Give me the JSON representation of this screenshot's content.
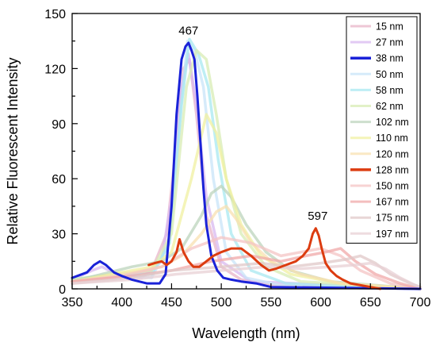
{
  "chart_data": {
    "type": "line",
    "xlabel": "Wavelength (nm)",
    "ylabel": "Relative Fluorescent Intensity",
    "xlim": [
      350,
      700
    ],
    "ylim": [
      0,
      150
    ],
    "xticks": [
      350,
      400,
      450,
      500,
      550,
      600,
      650,
      700
    ],
    "yticks": [
      0,
      30,
      60,
      90,
      120,
      150
    ],
    "grid": false,
    "legend_position": "top-right",
    "annotations": [
      {
        "text": "467",
        "x": 467,
        "y": 136
      },
      {
        "text": "597",
        "x": 597,
        "y": 35
      }
    ],
    "series": [
      {
        "name": "15 nm",
        "color": "#e8b4c8",
        "highlight": false,
        "x": [
          350,
          400,
          430,
          445,
          455,
          462,
          468,
          475,
          485,
          500,
          520,
          550,
          700
        ],
        "y": [
          5,
          7,
          10,
          30,
          80,
          120,
          125,
          95,
          40,
          12,
          5,
          2,
          0
        ]
      },
      {
        "name": "27 nm",
        "color": "#d8b8f0",
        "highlight": false,
        "x": [
          350,
          370,
          380,
          395,
          420,
          440,
          450,
          460,
          467,
          475,
          485,
          500,
          530,
          700
        ],
        "y": [
          5,
          10,
          12,
          8,
          6,
          15,
          50,
          110,
          128,
          100,
          50,
          15,
          4,
          0
        ]
      },
      {
        "name": "38 nm",
        "color": "#1a22d8",
        "highlight": true,
        "x": [
          350,
          365,
          372,
          378,
          384,
          392,
          400,
          410,
          425,
          438,
          444,
          450,
          455,
          460,
          464,
          467,
          470,
          473,
          476,
          479,
          482,
          485,
          490,
          496,
          502,
          510,
          520,
          535,
          550,
          700
        ],
        "y": [
          6,
          9,
          13,
          15,
          13,
          9,
          7,
          5,
          3,
          3,
          8,
          45,
          95,
          125,
          132,
          134,
          130,
          125,
          105,
          80,
          55,
          35,
          18,
          10,
          6,
          5,
          4,
          3,
          1,
          0
        ]
      },
      {
        "name": "50 nm",
        "color": "#c8e4f8",
        "highlight": false,
        "x": [
          350,
          390,
          430,
          448,
          458,
          466,
          473,
          482,
          492,
          505,
          525,
          560,
          700
        ],
        "y": [
          5,
          8,
          6,
          25,
          90,
          135,
          130,
          110,
          60,
          20,
          6,
          2,
          0
        ]
      },
      {
        "name": "58 nm",
        "color": "#a8e8f0",
        "highlight": false,
        "x": [
          350,
          390,
          430,
          448,
          460,
          468,
          477,
          487,
          497,
          510,
          530,
          565,
          700
        ],
        "y": [
          5,
          8,
          8,
          25,
          100,
          136,
          128,
          110,
          70,
          30,
          10,
          3,
          0
        ]
      },
      {
        "name": "62 nm",
        "color": "#d8ecb4",
        "highlight": false,
        "x": [
          350,
          390,
          430,
          450,
          465,
          475,
          485,
          495,
          505,
          520,
          545,
          580,
          700
        ],
        "y": [
          5,
          8,
          10,
          30,
          110,
          130,
          125,
          95,
          60,
          30,
          12,
          4,
          0
        ]
      },
      {
        "name": "102 nm",
        "color": "#bcd4bc",
        "highlight": false,
        "x": [
          350,
          380,
          410,
          440,
          460,
          480,
          490,
          500,
          510,
          525,
          545,
          570,
          610,
          700
        ],
        "y": [
          4,
          8,
          12,
          15,
          22,
          40,
          52,
          56,
          50,
          35,
          20,
          10,
          4,
          0
        ]
      },
      {
        "name": "110 nm",
        "color": "#f0f0a0",
        "highlight": false,
        "x": [
          350,
          390,
          430,
          450,
          470,
          485,
          495,
          505,
          520,
          540,
          570,
          620,
          700
        ],
        "y": [
          4,
          8,
          12,
          20,
          60,
          95,
          85,
          60,
          35,
          18,
          8,
          3,
          0
        ]
      },
      {
        "name": "120 nm",
        "color": "#f8e0b0",
        "highlight": false,
        "x": [
          350,
          400,
          440,
          460,
          480,
          495,
          505,
          515,
          530,
          550,
          580,
          620,
          700
        ],
        "y": [
          4,
          8,
          12,
          18,
          30,
          42,
          45,
          38,
          25,
          15,
          8,
          3,
          0
        ]
      },
      {
        "name": "128 nm",
        "color": "#dc3c10",
        "highlight": true,
        "x": [
          427,
          433,
          440,
          445,
          450,
          455,
          458,
          462,
          467,
          472,
          478,
          485,
          492,
          500,
          510,
          520,
          530,
          540,
          548,
          555,
          565,
          575,
          582,
          588,
          592,
          595,
          598,
          601,
          605,
          610,
          616,
          622,
          630,
          640,
          650,
          660
        ],
        "y": [
          13,
          14,
          15,
          13,
          15,
          20,
          27,
          20,
          15,
          12,
          12,
          15,
          18,
          20,
          22,
          22,
          18,
          13,
          10,
          11,
          13,
          15,
          18,
          22,
          30,
          33,
          29,
          22,
          14,
          10,
          7,
          5,
          3,
          2,
          1,
          0
        ]
      },
      {
        "name": "150 nm",
        "color": "#f4c4c4",
        "highlight": false,
        "x": [
          350,
          400,
          440,
          470,
          500,
          530,
          560,
          580,
          600,
          620,
          640,
          670,
          700
        ],
        "y": [
          4,
          7,
          12,
          22,
          28,
          25,
          18,
          20,
          22,
          18,
          10,
          3,
          0
        ]
      },
      {
        "name": "167 nm",
        "color": "#f0a8a8",
        "highlight": false,
        "x": [
          350,
          410,
          450,
          490,
          530,
          560,
          585,
          605,
          620,
          635,
          655,
          680,
          700
        ],
        "y": [
          4,
          7,
          10,
          15,
          18,
          15,
          18,
          20,
          22,
          15,
          8,
          3,
          0
        ]
      },
      {
        "name": "175 nm",
        "color": "#e0c8c8",
        "highlight": false,
        "x": [
          350,
          410,
          450,
          500,
          540,
          570,
          600,
          625,
          640,
          655,
          670,
          690,
          700
        ],
        "y": [
          3,
          6,
          10,
          12,
          14,
          12,
          14,
          16,
          18,
          14,
          8,
          3,
          1
        ]
      },
      {
        "name": "197 nm",
        "color": "#e8d0d4",
        "highlight": false,
        "x": [
          350,
          410,
          455,
          500,
          545,
          580,
          610,
          635,
          650,
          665,
          680,
          695,
          700
        ],
        "y": [
          3,
          5,
          8,
          10,
          12,
          11,
          12,
          13,
          14,
          11,
          6,
          2,
          1
        ]
      }
    ]
  }
}
